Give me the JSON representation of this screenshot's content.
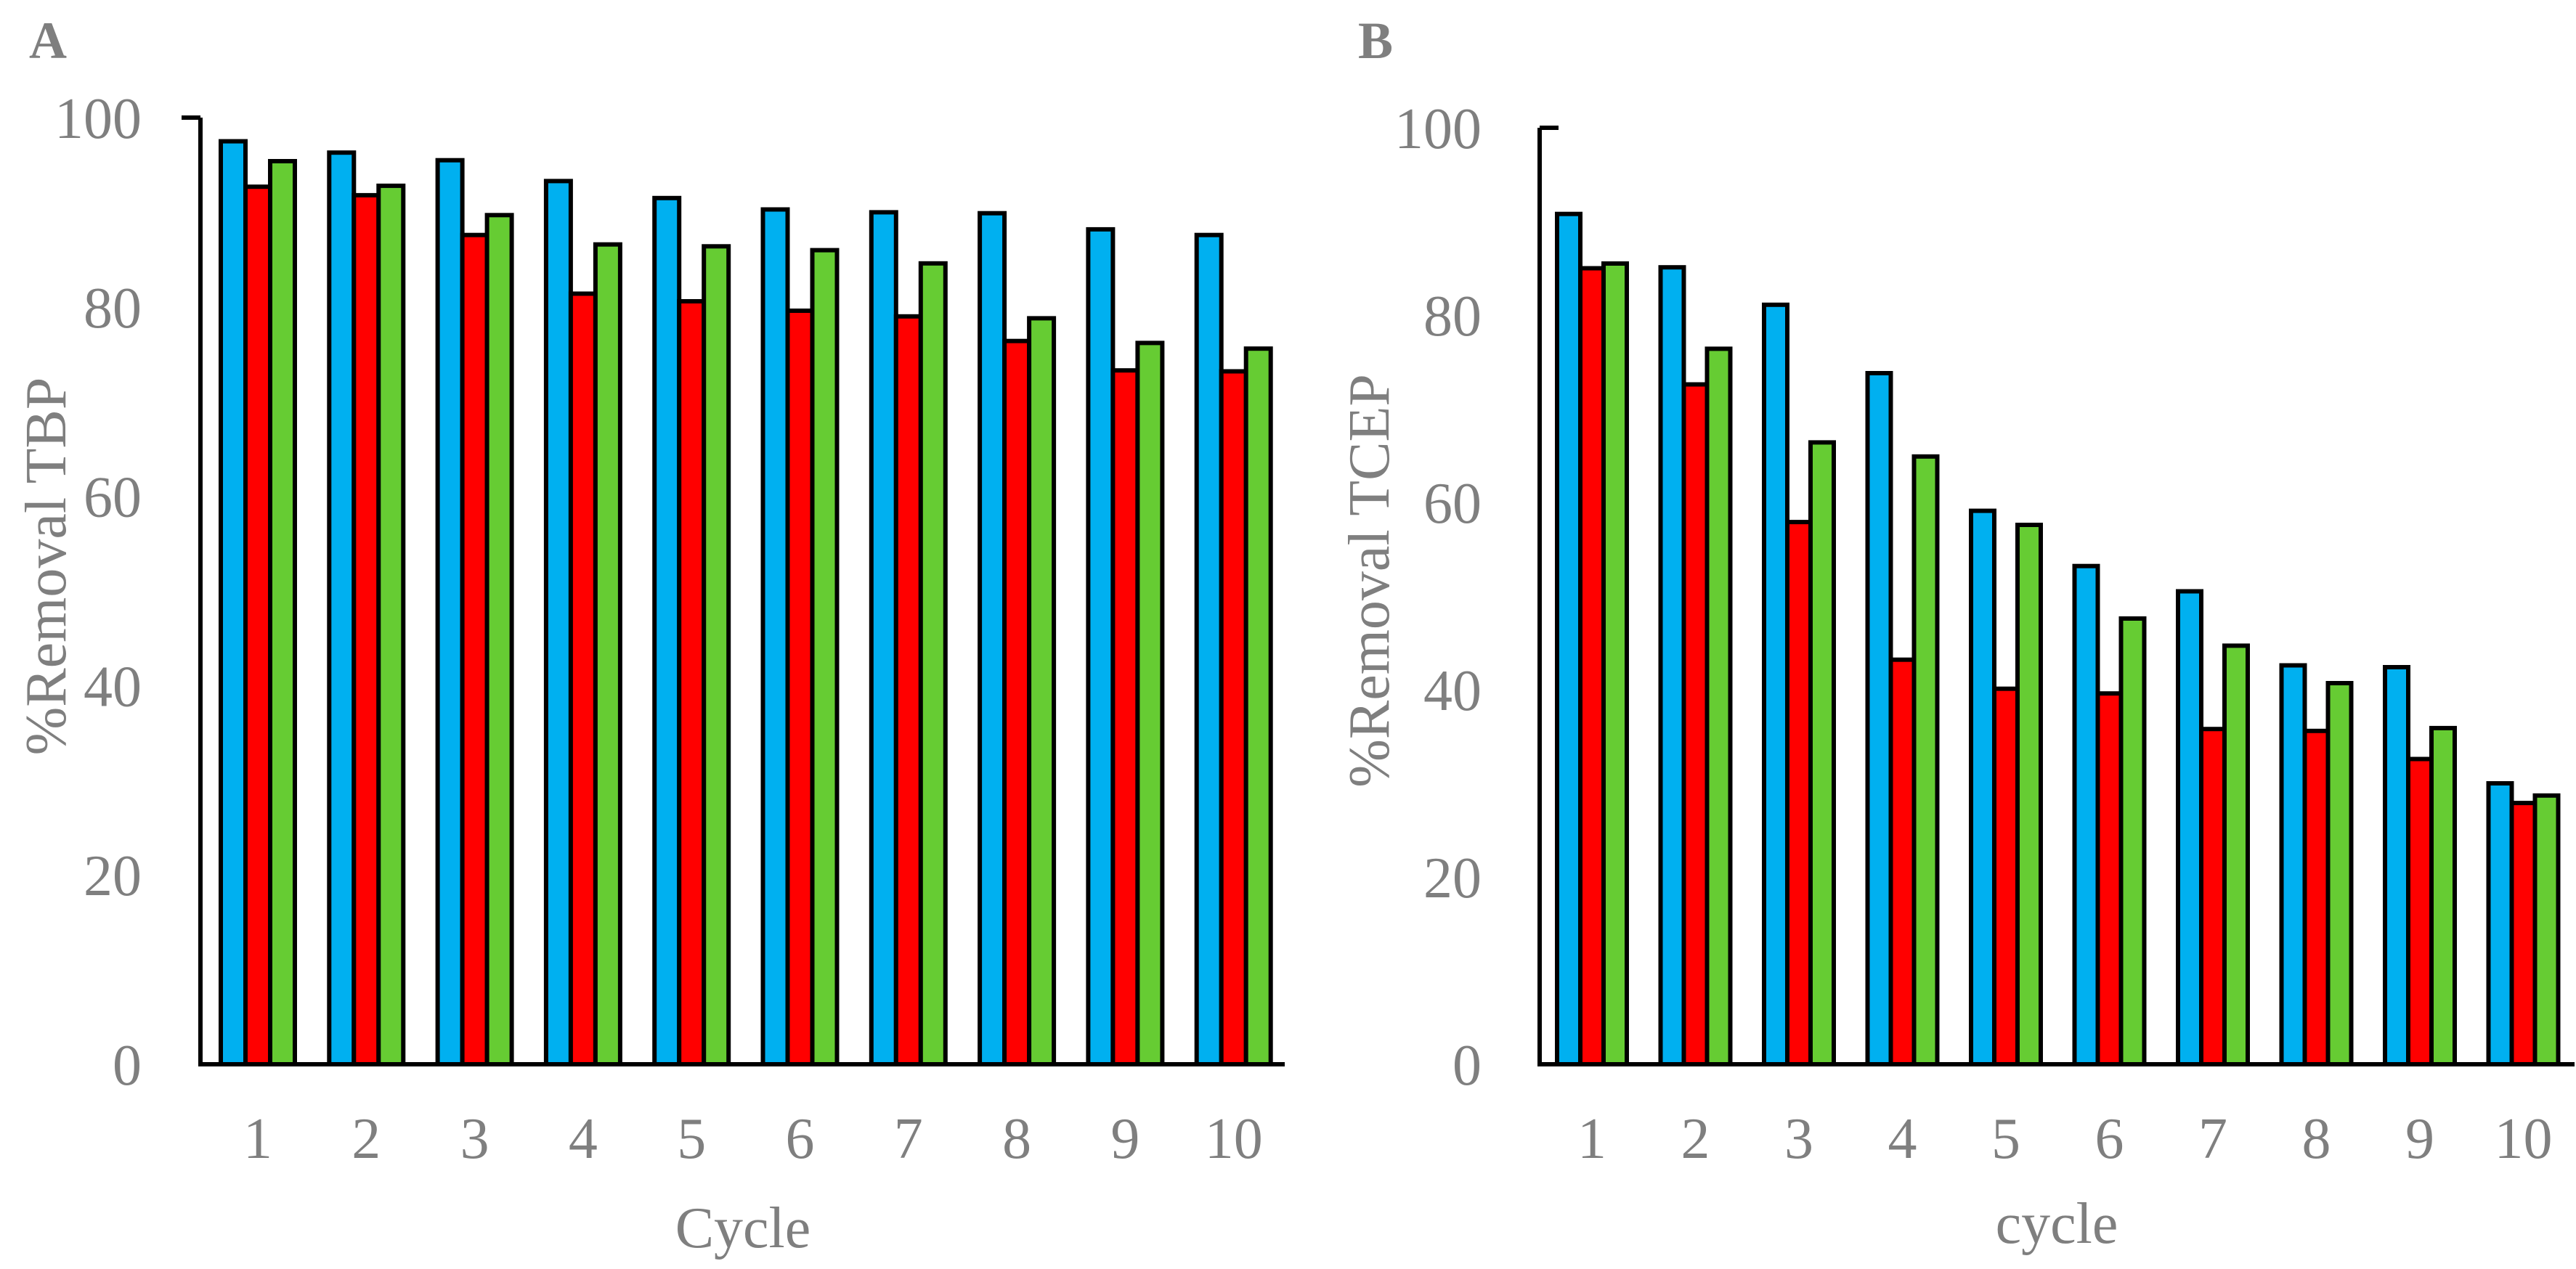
{
  "chart_data": [
    {
      "panel": "A",
      "type": "bar",
      "categories": [
        "1",
        "2",
        "3",
        "4",
        "5",
        "6",
        "7",
        "8",
        "9",
        "10"
      ],
      "xlabel": "Cycle",
      "ylabel": "%Removal TBP",
      "ylim": [
        0,
        100
      ],
      "yticks": [
        "0",
        "20",
        "40",
        "60",
        "80",
        "100"
      ],
      "grid": false,
      "legend": "none",
      "series": [
        {
          "color": "#00b0f0",
          "values": [
            97.5,
            96.3,
            95.5,
            93.3,
            91.5,
            90.3,
            90.0,
            89.9,
            88.2,
            87.6
          ]
        },
        {
          "color": "#ff0000",
          "values": [
            92.7,
            91.8,
            87.6,
            81.4,
            80.6,
            79.6,
            79.0,
            76.4,
            73.3,
            73.2
          ]
        },
        {
          "color": "#66cc33",
          "values": [
            95.4,
            92.8,
            89.7,
            86.6,
            86.4,
            86.0,
            84.6,
            78.8,
            76.2,
            75.6
          ]
        }
      ]
    },
    {
      "panel": "B",
      "type": "bar",
      "categories": [
        "1",
        "2",
        "3",
        "4",
        "5",
        "6",
        "7",
        "8",
        "9",
        "10"
      ],
      "xlabel": "cycle",
      "ylabel": "%Removal TCEP",
      "ylim": [
        0,
        100
      ],
      "yticks": [
        "0",
        "20",
        "40",
        "60",
        "80",
        "100"
      ],
      "grid": false,
      "legend": "none",
      "series": [
        {
          "color": "#00b0f0",
          "values": [
            90.8,
            85.1,
            81.1,
            73.8,
            59.1,
            53.2,
            50.5,
            42.6,
            42.4,
            30.0
          ]
        },
        {
          "color": "#ff0000",
          "values": [
            85.0,
            72.6,
            57.9,
            43.2,
            40.1,
            39.6,
            35.8,
            35.6,
            32.6,
            27.9
          ]
        },
        {
          "color": "#66cc33",
          "values": [
            85.5,
            76.4,
            66.4,
            64.9,
            57.6,
            47.6,
            44.7,
            40.7,
            35.9,
            28.7
          ]
        }
      ]
    }
  ]
}
